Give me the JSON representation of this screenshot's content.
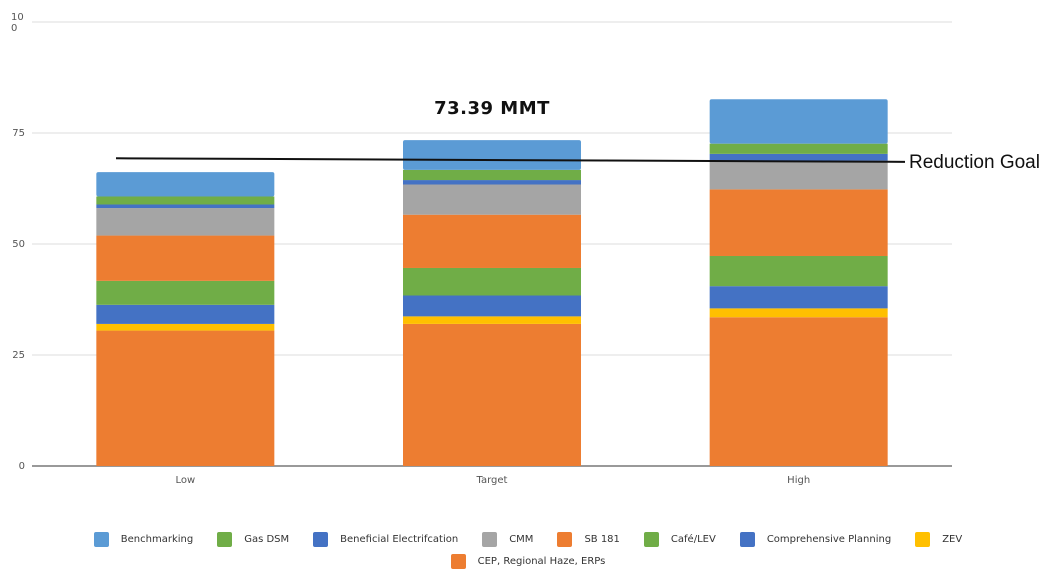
{
  "chart_data": {
    "type": "bar",
    "stacked": true,
    "categories": [
      "Low",
      "Target",
      "High"
    ],
    "series": [
      {
        "name": "CEP, Regional Haze, ERPs",
        "color": "#ed7d31",
        "values": [
          30.5,
          32.0,
          33.5
        ]
      },
      {
        "name": "ZEV",
        "color": "#ffc000",
        "values": [
          1.5,
          1.7,
          2.0
        ]
      },
      {
        "name": "Comprehensive Planning",
        "color": "#4472c4",
        "values": [
          4.3,
          4.7,
          5.0
        ]
      },
      {
        "name": "Café/LEV",
        "color": "#70ad47",
        "values": [
          5.4,
          6.2,
          6.8
        ]
      },
      {
        "name": "SB 181",
        "color": "#ed7d31",
        "values": [
          10.2,
          12.0,
          15.0
        ]
      },
      {
        "name": "CMM",
        "color": "#a5a5a5",
        "values": [
          6.2,
          6.8,
          6.5
        ]
      },
      {
        "name": "Beneficial Electrifcation",
        "color": "#4472c4",
        "values": [
          0.8,
          1.0,
          1.5
        ]
      },
      {
        "name": "Gas DSM",
        "color": "#70ad47",
        "values": [
          1.8,
          2.3,
          2.3
        ]
      },
      {
        "name": "Benchmarking",
        "color": "#5b9bd5",
        "values": [
          5.5,
          6.7,
          10.0
        ]
      }
    ],
    "legend_order": [
      "Benchmarking",
      "Gas DSM",
      "Beneficial Electrifcation",
      "CMM",
      "SB 181",
      "Café/LEV",
      "Comprehensive Planning",
      "ZEV",
      "CEP, Regional Haze, ERPs"
    ],
    "yticks": [
      "0",
      "25",
      "50",
      "75"
    ],
    "ytop_label": [
      "10",
      "0"
    ],
    "ylim": [
      0,
      100
    ],
    "grid": true,
    "legend_position": "bottom",
    "annotation": {
      "text": "73.39 MMT",
      "category": "Target"
    },
    "reduction_goal": {
      "label": "Reduction Goal",
      "value_start": 69.3,
      "value_end": 68.5
    }
  }
}
